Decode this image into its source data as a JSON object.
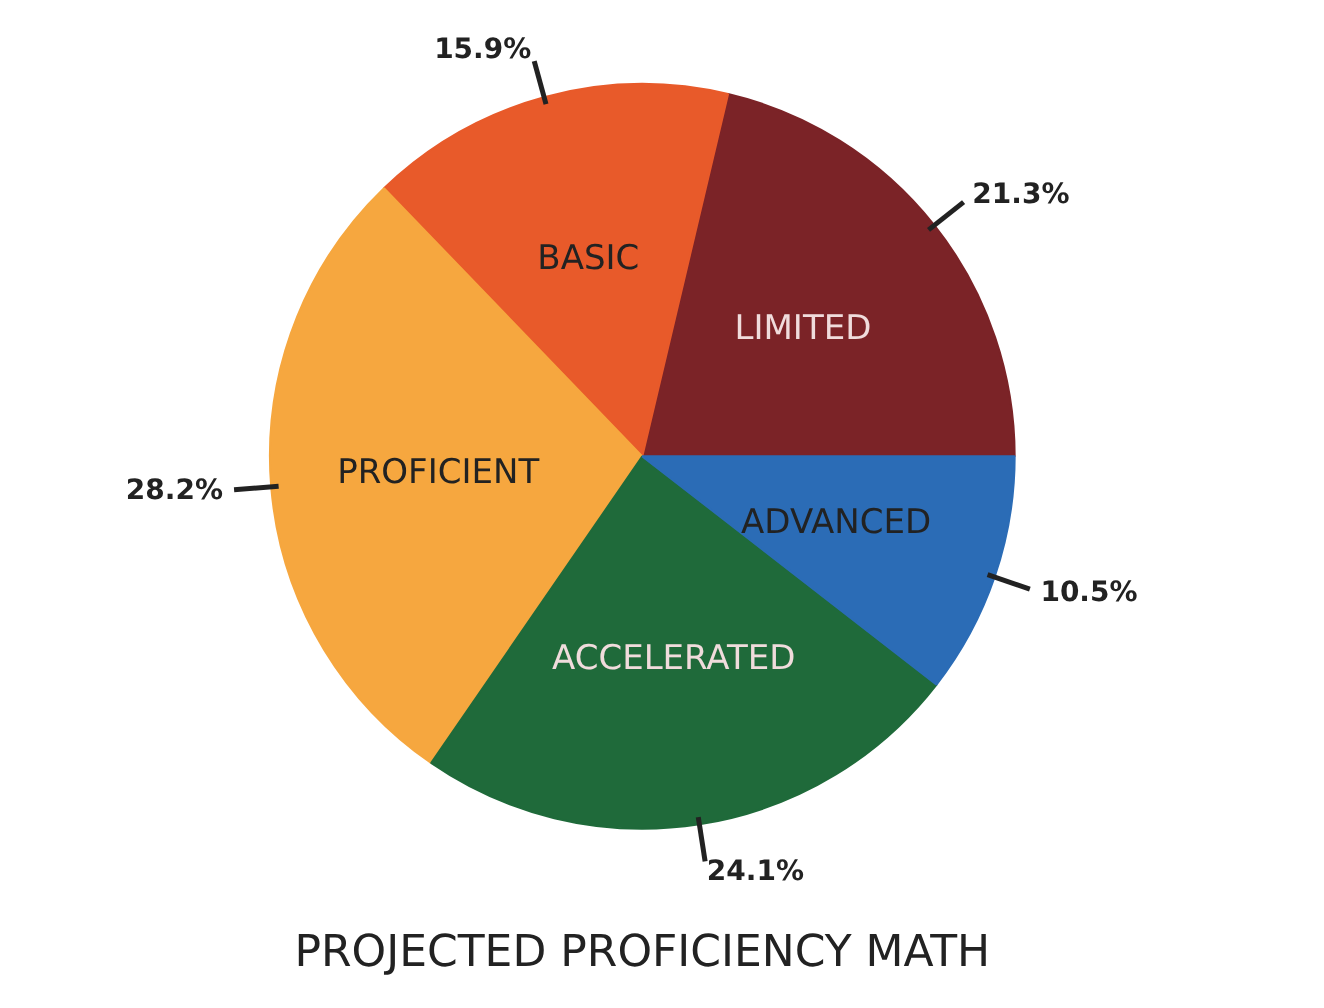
{
  "chart_data": {
    "type": "pie",
    "title": "PROJECTED PROFICIENCY MATH",
    "categories": [
      "LIMITED",
      "BASIC",
      "PROFICIENT",
      "ACCELERATED",
      "ADVANCED"
    ],
    "values": [
      21.3,
      15.9,
      28.2,
      24.1,
      10.5
    ],
    "colors": [
      "#7b2327",
      "#e85a2a",
      "#f6a73f",
      "#1f6a3a",
      "#2b6cb6"
    ],
    "value_labels": [
      "21.3%",
      "15.9%",
      "28.2%",
      "24.1%",
      "10.5%"
    ]
  }
}
